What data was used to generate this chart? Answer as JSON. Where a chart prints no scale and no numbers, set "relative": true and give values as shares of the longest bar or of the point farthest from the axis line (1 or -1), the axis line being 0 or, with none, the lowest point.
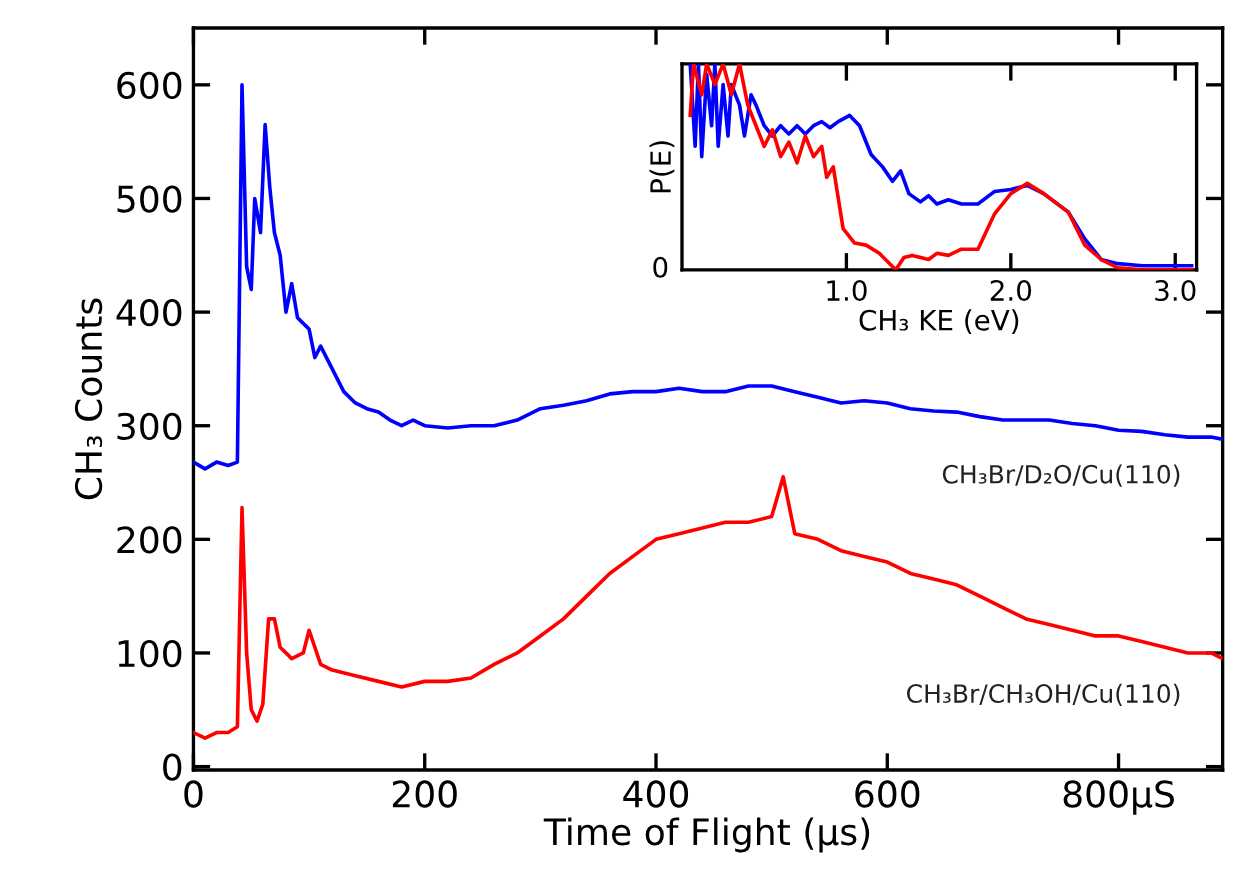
{
  "chart_data": [
    {
      "type": "line",
      "xlabel": "Time of Flight (μs)",
      "ylabel": "CH₃ Counts",
      "xlim": [
        0,
        890
      ],
      "ylim": [
        -3,
        650
      ],
      "xticks": [
        0,
        200,
        400,
        600,
        {
          "value": 800,
          "label": "800μS"
        }
      ],
      "yticks": [
        0,
        100,
        200,
        300,
        400,
        500,
        600
      ],
      "grid": false,
      "legend": false,
      "series": [
        {
          "name": "CH₃Br/D₂O/Cu(110)",
          "color": "#0000ff",
          "x": [
            0,
            10,
            20,
            30,
            38,
            42,
            46,
            50,
            53,
            58,
            62,
            66,
            70,
            75,
            80,
            85,
            90,
            100,
            105,
            110,
            120,
            130,
            140,
            150,
            160,
            170,
            180,
            190,
            200,
            220,
            240,
            260,
            280,
            300,
            320,
            340,
            360,
            380,
            400,
            420,
            440,
            460,
            480,
            500,
            520,
            540,
            560,
            580,
            600,
            620,
            640,
            660,
            680,
            700,
            720,
            740,
            760,
            780,
            800,
            820,
            840,
            860,
            880,
            890
          ],
          "values": [
            268,
            262,
            268,
            265,
            268,
            600,
            440,
            420,
            500,
            470,
            565,
            510,
            470,
            450,
            400,
            425,
            395,
            385,
            360,
            370,
            350,
            330,
            320,
            315,
            312,
            305,
            300,
            305,
            300,
            298,
            300,
            300,
            305,
            315,
            318,
            322,
            328,
            330,
            330,
            333,
            330,
            330,
            335,
            335,
            330,
            325,
            320,
            322,
            320,
            315,
            313,
            312,
            308,
            305,
            305,
            305,
            302,
            300,
            296,
            295,
            292,
            290,
            290,
            288
          ]
        },
        {
          "name": "CH₃Br/CH₃OH/Cu(110)",
          "color": "#ff0000",
          "x": [
            0,
            10,
            20,
            30,
            38,
            42,
            46,
            50,
            55,
            60,
            65,
            70,
            75,
            85,
            95,
            100,
            110,
            120,
            140,
            160,
            180,
            200,
            220,
            240,
            260,
            280,
            300,
            320,
            340,
            360,
            380,
            400,
            420,
            440,
            460,
            480,
            500,
            510,
            520,
            540,
            560,
            580,
            600,
            620,
            640,
            660,
            680,
            700,
            720,
            740,
            760,
            780,
            800,
            820,
            840,
            860,
            880,
            890
          ],
          "values": [
            30,
            25,
            30,
            30,
            35,
            228,
            100,
            50,
            40,
            55,
            130,
            130,
            105,
            95,
            100,
            120,
            90,
            85,
            80,
            75,
            70,
            75,
            75,
            78,
            90,
            100,
            115,
            130,
            150,
            170,
            185,
            200,
            205,
            210,
            215,
            215,
            220,
            255,
            205,
            200,
            190,
            185,
            180,
            170,
            165,
            160,
            150,
            140,
            130,
            125,
            120,
            115,
            115,
            110,
            105,
            100,
            100,
            95
          ]
        }
      ]
    },
    {
      "type": "line",
      "xlabel": "CH₃ KE (eV)",
      "ylabel": "P(E)",
      "relative": true,
      "xlim": [
        0,
        3.13
      ],
      "xticks": [
        {
          "value": 1,
          "label": "1.0"
        },
        {
          "value": 2,
          "label": "2.0"
        },
        {
          "value": 3,
          "label": "3.0"
        }
      ],
      "annotations": [
        "0"
      ],
      "grid": false,
      "legend": false,
      "series": [
        {
          "color": "#0000ff",
          "x": [
            0.05,
            0.08,
            0.1,
            0.12,
            0.15,
            0.18,
            0.2,
            0.22,
            0.25,
            0.28,
            0.3,
            0.35,
            0.38,
            0.42,
            0.45,
            0.5,
            0.55,
            0.6,
            0.65,
            0.7,
            0.75,
            0.8,
            0.85,
            0.9,
            0.95,
            1.02,
            1.08,
            1.15,
            1.22,
            1.28,
            1.33,
            1.38,
            1.45,
            1.5,
            1.55,
            1.62,
            1.7,
            1.8,
            1.9,
            2.0,
            2.1,
            2.2,
            2.35,
            2.45,
            2.55,
            2.65,
            2.8,
            3.0,
            3.1
          ],
          "values": [
            1.0,
            0.6,
            1.0,
            0.55,
            0.95,
            0.7,
            1.0,
            0.6,
            0.9,
            0.65,
            0.9,
            0.8,
            0.65,
            0.85,
            0.8,
            0.7,
            0.65,
            0.7,
            0.66,
            0.7,
            0.66,
            0.7,
            0.72,
            0.69,
            0.72,
            0.75,
            0.7,
            0.56,
            0.5,
            0.43,
            0.48,
            0.37,
            0.33,
            0.36,
            0.32,
            0.34,
            0.32,
            0.32,
            0.38,
            0.39,
            0.41,
            0.37,
            0.28,
            0.15,
            0.05,
            0.03,
            0.02,
            0.02,
            0.02
          ]
        },
        {
          "color": "#ff0000",
          "x": [
            0.05,
            0.07,
            0.12,
            0.15,
            0.2,
            0.25,
            0.3,
            0.35,
            0.4,
            0.45,
            0.5,
            0.55,
            0.6,
            0.65,
            0.7,
            0.75,
            0.8,
            0.85,
            0.88,
            0.92,
            0.95,
            0.98,
            1.05,
            1.12,
            1.2,
            1.3,
            1.35,
            1.4,
            1.5,
            1.55,
            1.62,
            1.7,
            1.8,
            1.9,
            2.0,
            2.1,
            2.2,
            2.35,
            2.45,
            2.55,
            2.65,
            2.8,
            3.0,
            3.1
          ],
          "values": [
            0.75,
            1.0,
            0.85,
            1.0,
            0.9,
            1.0,
            0.85,
            1.0,
            0.8,
            0.7,
            0.6,
            0.68,
            0.55,
            0.62,
            0.52,
            0.65,
            0.55,
            0.6,
            0.45,
            0.5,
            0.35,
            0.2,
            0.13,
            0.12,
            0.08,
            0.0,
            0.06,
            0.07,
            0.05,
            0.08,
            0.07,
            0.1,
            0.1,
            0.27,
            0.37,
            0.42,
            0.37,
            0.28,
            0.12,
            0.05,
            0.01,
            0.0,
            0.0,
            0.0
          ]
        }
      ]
    }
  ]
}
